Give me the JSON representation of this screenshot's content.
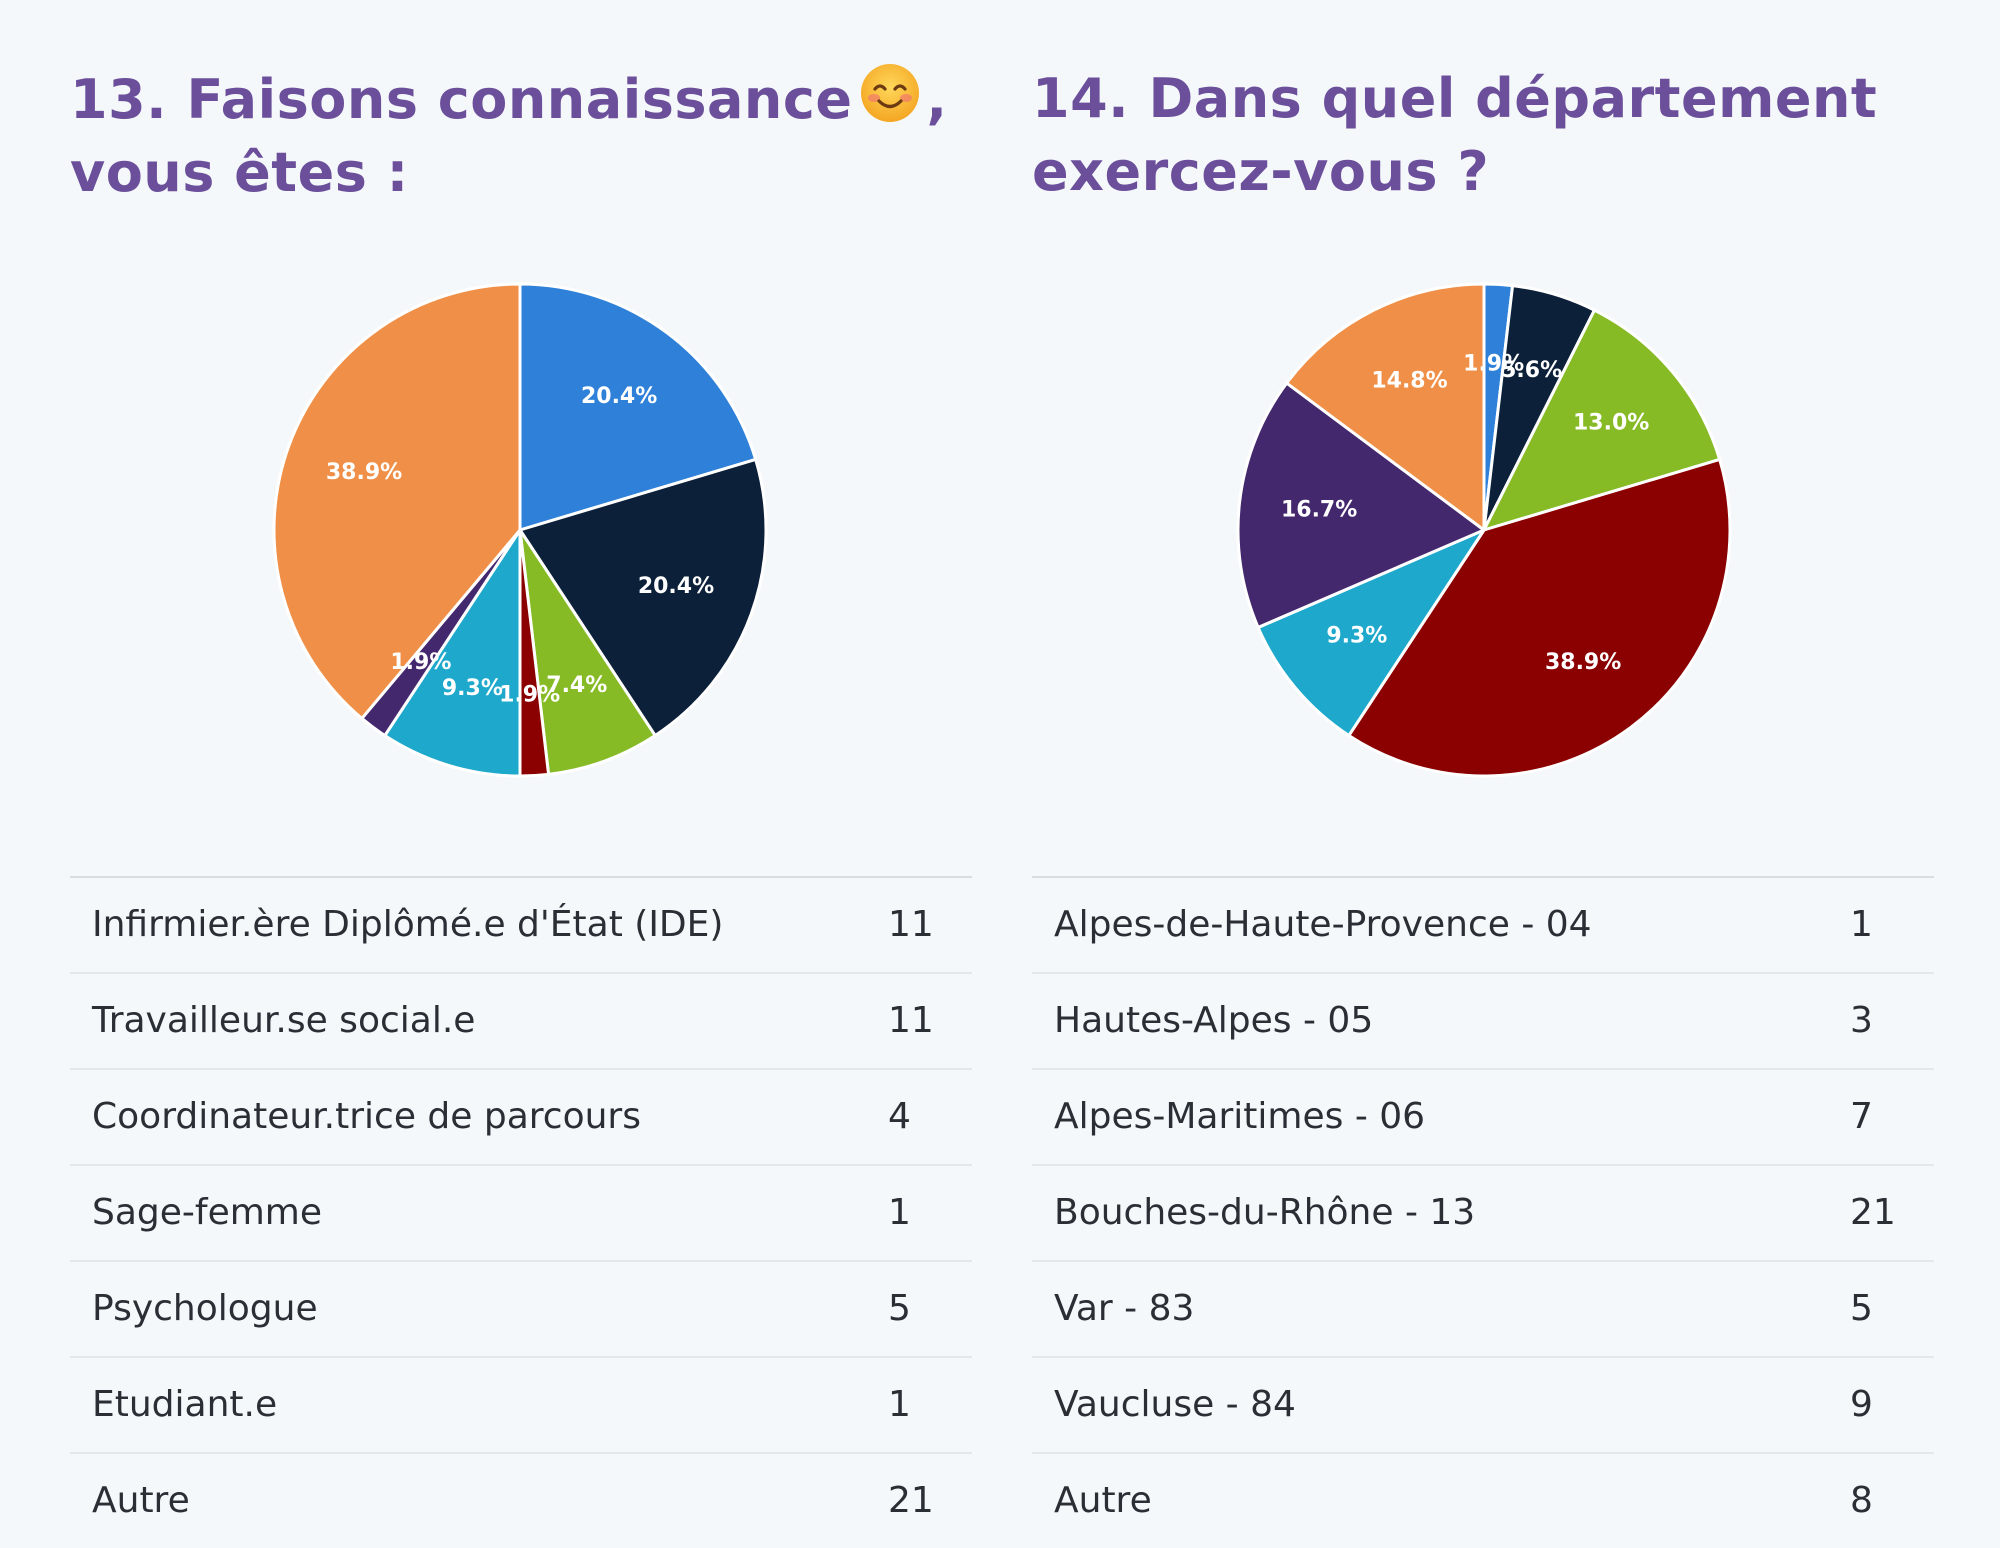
{
  "panels": [
    {
      "title_before_emoji": "13. Faisons connaissance",
      "title_after_emoji": ",",
      "title_line2": "vous êtes :",
      "title_icon": "smiling-face-emoji-icon",
      "rows": [
        {
          "label": "Infirmier.ère Diplômé.e d'État (IDE)",
          "count": "11"
        },
        {
          "label": "Travailleur.se social.e",
          "count": "11"
        },
        {
          "label": "Coordinateur.trice de parcours",
          "count": "4"
        },
        {
          "label": "Sage-femme",
          "count": "1"
        },
        {
          "label": "Psychologue",
          "count": "5"
        },
        {
          "label": "Etudiant.e",
          "count": "1"
        },
        {
          "label": "Autre",
          "count": "21"
        }
      ]
    },
    {
      "title_line1": "14. Dans quel département",
      "title_line2": "exercez-vous ?",
      "rows": [
        {
          "label": "Alpes-de-Haute-Provence - 04",
          "count": "1"
        },
        {
          "label": "Hautes-Alpes - 05",
          "count": "3"
        },
        {
          "label": "Alpes-Maritimes - 06",
          "count": "7"
        },
        {
          "label": "Bouches-du-Rhône - 13",
          "count": "21"
        },
        {
          "label": "Var - 83",
          "count": "5"
        },
        {
          "label": "Vaucluse - 84",
          "count": "9"
        },
        {
          "label": "Autre",
          "count": "8"
        }
      ]
    }
  ],
  "chart_data": [
    {
      "type": "pie",
      "title": "13. Faisons connaissance , vous êtes :",
      "categories": [
        "Infirmier.ère Diplômé.e d'État (IDE)",
        "Travailleur.se social.e",
        "Coordinateur.trice de parcours",
        "Sage-femme",
        "Psychologue",
        "Etudiant.e",
        "Autre"
      ],
      "values": [
        11,
        11,
        4,
        1,
        5,
        1,
        21
      ],
      "labels": [
        "20.4%",
        "20.4%",
        "7.4%",
        "1.9%",
        "9.3%",
        "1.9%",
        "38.9%"
      ],
      "colors": [
        "#2f80d8",
        "#0c2039",
        "#86bb25",
        "#8b0000",
        "#1ea8cc",
        "#44286d",
        "#f09048"
      ],
      "legend": "table-below"
    },
    {
      "type": "pie",
      "title": "14. Dans quel département exercez-vous ?",
      "categories": [
        "Alpes-de-Haute-Provence - 04",
        "Hautes-Alpes - 05",
        "Alpes-Maritimes - 06",
        "Bouches-du-Rhône - 13",
        "Var - 83",
        "Vaucluse - 84",
        "Autre"
      ],
      "values": [
        1,
        3,
        7,
        21,
        5,
        9,
        8
      ],
      "labels": [
        "1.9%",
        "5.6%",
        "13.0%",
        "38.9%",
        "9.3%",
        "16.7%",
        "14.8%"
      ],
      "colors": [
        "#2f80d8",
        "#0c2039",
        "#86bb25",
        "#8b0000",
        "#1ea8cc",
        "#44286d",
        "#f09048"
      ],
      "legend": "table-below"
    }
  ]
}
